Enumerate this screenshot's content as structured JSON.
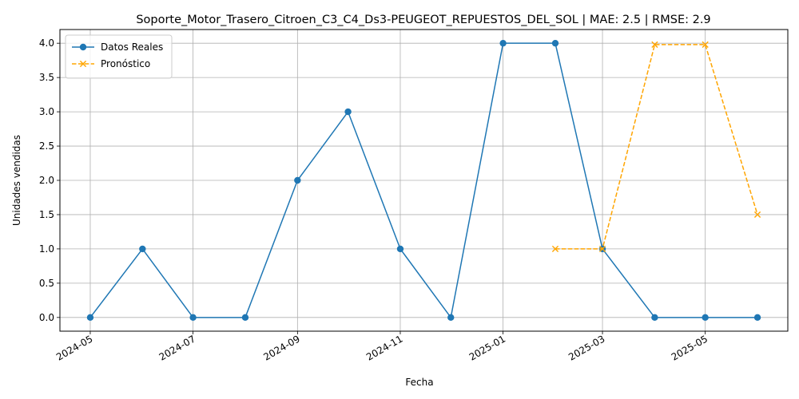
{
  "chart_data": {
    "type": "line",
    "title": "Soporte_Motor_Trasero_Citroen_C3_C4_Ds3-PEUGEOT_REPUESTOS_DEL_SOL | MAE: 2.5 | RMSE: 2.9",
    "xlabel": "Fecha",
    "ylabel": "Unidades vendidas",
    "x_tick_labels": [
      "2024-05",
      "2024-07",
      "2024-09",
      "2024-11",
      "2025-01",
      "2025-03",
      "2025-05"
    ],
    "x_ticks": [
      "2024-05-01",
      "2024-07-01",
      "2024-09-01",
      "2024-11-01",
      "2025-01-01",
      "2025-03-01",
      "2025-05-01"
    ],
    "xlim": [
      "2024-04-13",
      "2025-06-19"
    ],
    "ylim": [
      -0.2,
      4.2
    ],
    "y_ticks": [
      0.0,
      0.5,
      1.0,
      1.5,
      2.0,
      2.5,
      3.0,
      3.5,
      4.0
    ],
    "y_tick_labels": [
      "0.0",
      "0.5",
      "1.0",
      "1.5",
      "2.0",
      "2.5",
      "3.0",
      "3.5",
      "4.0"
    ],
    "grid": true,
    "legend": "top-left",
    "series": [
      {
        "name": "Datos Reales",
        "color": "#1f77b4",
        "marker": "circle",
        "line_style": "solid",
        "x": [
          "2024-05-01",
          "2024-06-01",
          "2024-07-01",
          "2024-08-01",
          "2024-09-01",
          "2024-10-01",
          "2024-11-01",
          "2024-12-01",
          "2025-01-01",
          "2025-02-01",
          "2025-03-01",
          "2025-04-01",
          "2025-05-01",
          "2025-06-01"
        ],
        "values": [
          0,
          1,
          0,
          0,
          2,
          3,
          1,
          0,
          4,
          4,
          1,
          0,
          0,
          0
        ]
      },
      {
        "name": "Pronóstico",
        "color": "#ffa500",
        "marker": "x",
        "line_style": "dashed",
        "x": [
          "2025-02-01",
          "2025-03-01",
          "2025-04-01",
          "2025-05-01",
          "2025-06-01"
        ],
        "values": [
          1.0,
          1.0,
          3.98,
          3.98,
          1.5
        ]
      }
    ]
  }
}
